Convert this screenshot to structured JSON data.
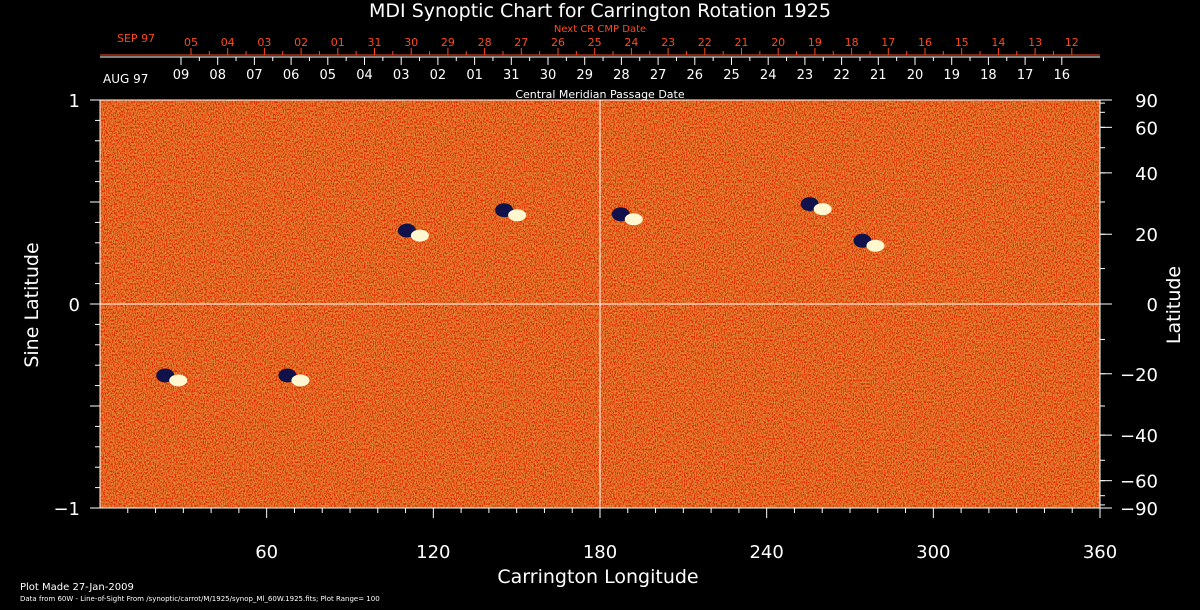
{
  "chart_data": {
    "type": "heatmap",
    "title": "MDI Synoptic Chart for Carrington Rotation 1925",
    "xlabel": "Carrington Longitude",
    "ylabel_left": "Sine Latitude",
    "ylabel_right": "Latitude",
    "xlim": [
      0,
      360
    ],
    "ylim": [
      -1,
      1
    ],
    "x_ticks": [
      60,
      120,
      180,
      240,
      300,
      360
    ],
    "y_ticks_left": [
      {
        "v": 1,
        "label": "1"
      },
      {
        "v": 0,
        "label": "0"
      },
      {
        "v": -1,
        "label": "−1"
      }
    ],
    "y_ticks_right": [
      90,
      60,
      40,
      20,
      0,
      -20,
      -40,
      -60,
      -90
    ],
    "grid_lines": {
      "longitude": 180,
      "sine_latitude": 0
    },
    "top_axis_upper": {
      "title": "Next CR CMP Date",
      "month_label": "SEP 97",
      "ticks": [
        "05",
        "04",
        "03",
        "02",
        "01",
        "31",
        "30",
        "29",
        "28",
        "27",
        "26",
        "25",
        "24",
        "23",
        "22",
        "21",
        "20",
        "19",
        "18",
        "17",
        "16",
        "15",
        "14",
        "13",
        "12"
      ]
    },
    "top_axis_lower": {
      "title": "Central Meridian Passage Date",
      "month_label": "AUG 97",
      "ticks": [
        "09",
        "08",
        "07",
        "06",
        "05",
        "04",
        "03",
        "02",
        "01",
        "31",
        "30",
        "29",
        "28",
        "27",
        "26",
        "25",
        "24",
        "23",
        "22",
        "21",
        "20",
        "19",
        "18",
        "17",
        "16"
      ]
    },
    "active_regions": [
      {
        "lon": 113,
        "sinlat": 0.35
      },
      {
        "lon": 148,
        "sinlat": 0.45
      },
      {
        "lon": 190,
        "sinlat": 0.43
      },
      {
        "lon": 258,
        "sinlat": 0.48
      },
      {
        "lon": 277,
        "sinlat": 0.3
      },
      {
        "lon": 26,
        "sinlat": -0.36
      },
      {
        "lon": 70,
        "sinlat": -0.36
      }
    ],
    "colors": {
      "background": "#000000",
      "map_base": "#e8440c",
      "text": "#ffffff",
      "upper_axis": "#ff4a1c"
    }
  },
  "footer": {
    "plot_made": "Plot Made 27-Jan-2009",
    "data_source": "Data from 60W - Line-of-Sight From /synoptic/carrot/M/1925/synop_Ml_60W.1925.fits; Plot Range= 100"
  }
}
